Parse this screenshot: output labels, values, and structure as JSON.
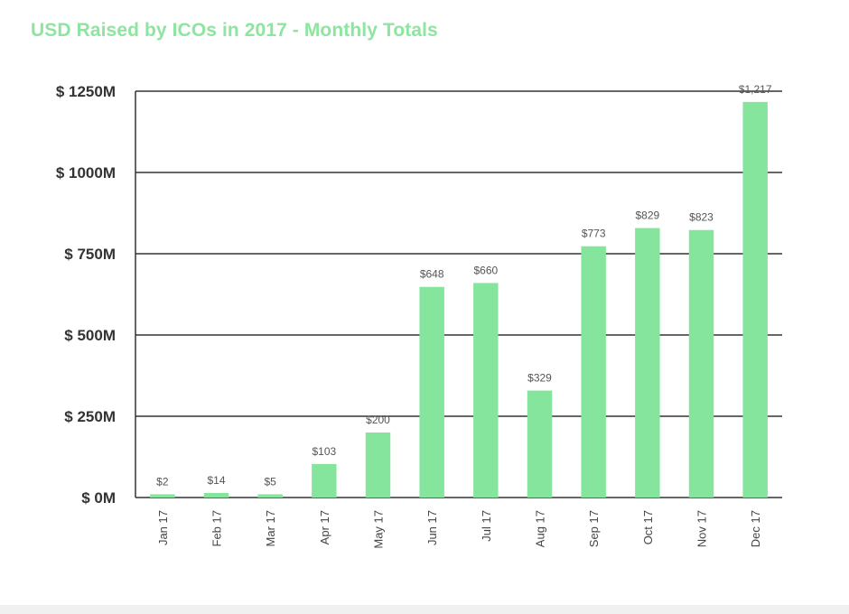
{
  "chart_data": {
    "type": "bar",
    "title": "USD Raised by ICOs in 2017 - Monthly Totals",
    "categories": [
      "Jan 17",
      "Feb 17",
      "Mar 17",
      "Apr 17",
      "May 17",
      "Jun 17",
      "Jul 17",
      "Aug 17",
      "Sep 17",
      "Oct 17",
      "Nov 17",
      "Dec 17"
    ],
    "values": [
      2,
      14,
      5,
      103,
      200,
      648,
      660,
      329,
      773,
      829,
      823,
      1217
    ],
    "data_labels": [
      "$2",
      "$14",
      "$5",
      "$103",
      "$200",
      "$648",
      "$660",
      "$329",
      "$773",
      "$829",
      "$823",
      "$1,217"
    ],
    "yticks": [
      0,
      250,
      500,
      750,
      1000,
      1250
    ],
    "ytick_labels": [
      "$ 0M",
      "$ 250M",
      "$ 500M",
      "$ 750M",
      "$ 1000M",
      "$ 1250M"
    ],
    "ylim": [
      0,
      1250
    ],
    "xlabel": "",
    "ylabel": "",
    "grid": true,
    "colors": {
      "bar": "#86e59c",
      "title": "#8ee5a0",
      "gridline": "#333333"
    }
  }
}
